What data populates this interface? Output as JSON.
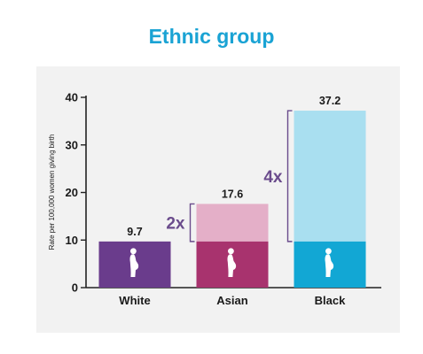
{
  "title": "Ethnic group",
  "colors": {
    "title": "#1aa3d4",
    "panel": "#f2f2f2",
    "bracket": "#6a4b8c",
    "silhouette": "#ffffff"
  },
  "chart_data": {
    "type": "bar",
    "title": "Ethnic group",
    "xlabel": "",
    "ylabel": "Rate per 100,000 women giving birth",
    "ylim": [
      0,
      40
    ],
    "yticks": [
      0,
      10,
      20,
      30,
      40
    ],
    "categories": [
      "White",
      "Asian",
      "Black"
    ],
    "values": [
      9.7,
      17.6,
      37.2
    ],
    "value_labels": [
      "9.7",
      "17.6",
      "37.2"
    ],
    "baseline_value": 9.7,
    "bar_colors": [
      "#6a3c8c",
      "#a8336e",
      "#12a7d4"
    ],
    "excess_colors": [
      "#6a3c8c",
      "#e4afc8",
      "#a9dff0"
    ],
    "annotations": [
      {
        "category": "Asian",
        "text": "2x",
        "from": 9.7,
        "to": 17.6
      },
      {
        "category": "Black",
        "text": "4x",
        "from": 9.7,
        "to": 37.2
      }
    ],
    "grid": false,
    "legend": "none"
  }
}
